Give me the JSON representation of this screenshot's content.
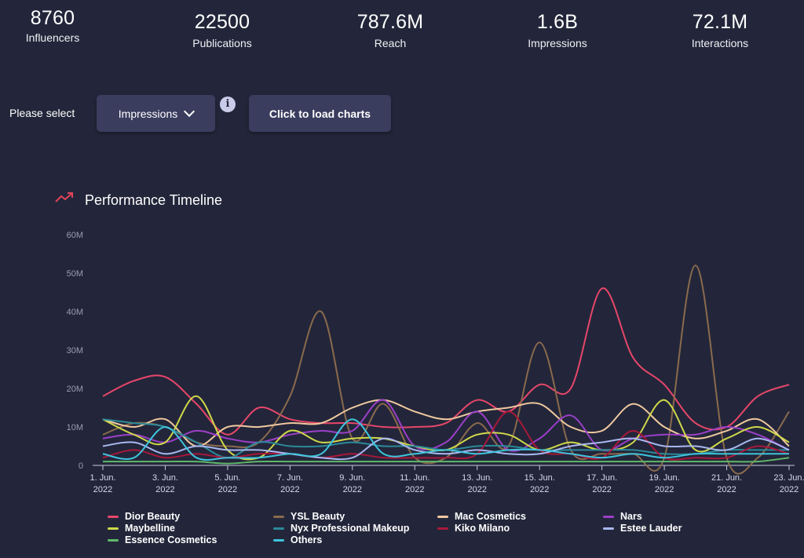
{
  "stats": [
    {
      "value": "8760",
      "label": "Influencers"
    },
    {
      "value": "22500",
      "label": "Publications"
    },
    {
      "value": "787.6M",
      "label": "Reach"
    },
    {
      "value": "1.6B",
      "label": "Impressions"
    },
    {
      "value": "72.1M",
      "label": "Interactions"
    }
  ],
  "controls": {
    "please_select": "Please select",
    "metric_selected": "Impressions",
    "info_glyph": "i",
    "load_button": "Click to load charts"
  },
  "icons": {
    "trend": "trending-up-icon",
    "info": "info-icon",
    "dropdown": "chevron-down-icon"
  },
  "colors": {
    "background": "#23263a",
    "button": "#3a3d5e",
    "trend_icon": "#e0445a"
  },
  "chart_data": {
    "type": "line",
    "title": "Performance Timeline",
    "ylim": [
      0,
      60
    ],
    "yticks": [
      "0",
      "10M",
      "20M",
      "30M",
      "40M",
      "50M",
      "60M"
    ],
    "xticks": [
      "1. Jun. 2022",
      "3. Jun. 2022",
      "5. Jun. 2022",
      "7. Jun. 2022",
      "9. Jun. 2022",
      "11. Jun. 2022",
      "13. Jun. 2022",
      "15. Jun. 2022",
      "17. Jun. 2022",
      "19. Jun. 2022",
      "21. Jun. 2022",
      "23. Jun. 2022"
    ],
    "x": [
      1,
      2,
      3,
      4,
      5,
      6,
      7,
      8,
      9,
      10,
      11,
      12,
      13,
      14,
      15,
      16,
      17,
      18,
      19,
      20,
      21,
      22,
      23
    ],
    "legend_position": "bottom",
    "series": [
      {
        "name": "Dior Beauty",
        "color": "#e8466a",
        "values": [
          18,
          22,
          23,
          16,
          8,
          15,
          12,
          11,
          11,
          10,
          10,
          11,
          17,
          14,
          21,
          20,
          46,
          28,
          21,
          11,
          10,
          18,
          21
        ]
      },
      {
        "name": "YSL Beauty",
        "color": "#8a6a4d",
        "values": [
          8,
          11,
          10,
          6,
          5,
          6,
          18,
          40,
          7,
          16,
          2,
          2,
          11,
          5,
          32,
          4,
          3,
          3,
          2,
          52,
          2,
          2,
          14
        ]
      },
      {
        "name": "Mac Cosmetics",
        "color": "#f0c9a0",
        "values": [
          12,
          10,
          12,
          5,
          10,
          10,
          11,
          11,
          15,
          17,
          14,
          12,
          14,
          15,
          16,
          10,
          9,
          16,
          10,
          7,
          9,
          12,
          5
        ]
      },
      {
        "name": "Nars",
        "color": "#9b3fc8",
        "values": [
          7,
          8,
          6,
          9,
          7,
          6,
          8,
          9,
          9,
          17,
          5,
          6,
          14,
          4,
          7,
          13,
          4,
          7,
          8,
          8,
          10,
          8,
          4
        ]
      },
      {
        "name": "Maybelline",
        "color": "#cfd94a",
        "values": [
          12,
          8,
          6,
          18,
          4,
          2,
          9,
          6,
          7,
          7,
          5,
          4,
          8,
          8,
          4,
          6,
          4,
          6,
          17,
          4,
          7,
          10,
          6
        ]
      },
      {
        "name": "Nyx Professional Makeup",
        "color": "#2a8a9a",
        "values": [
          12,
          11,
          10,
          6,
          2,
          6,
          5,
          5,
          6,
          5,
          5,
          4,
          5,
          5,
          4,
          4,
          4,
          4,
          3,
          3,
          4,
          4,
          4
        ]
      },
      {
        "name": "Kiko Milano",
        "color": "#a8183a",
        "values": [
          2,
          4,
          2,
          3,
          2,
          3,
          3,
          2,
          3,
          2,
          2,
          2,
          3,
          14,
          4,
          3,
          2,
          9,
          2,
          2,
          2,
          5,
          3
        ]
      },
      {
        "name": "Estee Lauder",
        "color": "#a9b8f0",
        "values": [
          5,
          6,
          3,
          5,
          4,
          4,
          3,
          2,
          2,
          7,
          4,
          3,
          4,
          3,
          3,
          5,
          6,
          7,
          5,
          5,
          4,
          7,
          4
        ]
      },
      {
        "name": "Essence Cosmetics",
        "color": "#5fb86a",
        "values": [
          1,
          1,
          1,
          1,
          0.5,
          1,
          1,
          1,
          1,
          1,
          1,
          1,
          1,
          1,
          1,
          1,
          1,
          1,
          1,
          1,
          1,
          1,
          2
        ]
      },
      {
        "name": "Others",
        "color": "#3fc4dc",
        "values": [
          3,
          2,
          10,
          2,
          2,
          2,
          3,
          3,
          12,
          3,
          3,
          4,
          3,
          4,
          4,
          3,
          2,
          3,
          2,
          3,
          3,
          3,
          3
        ]
      }
    ]
  }
}
